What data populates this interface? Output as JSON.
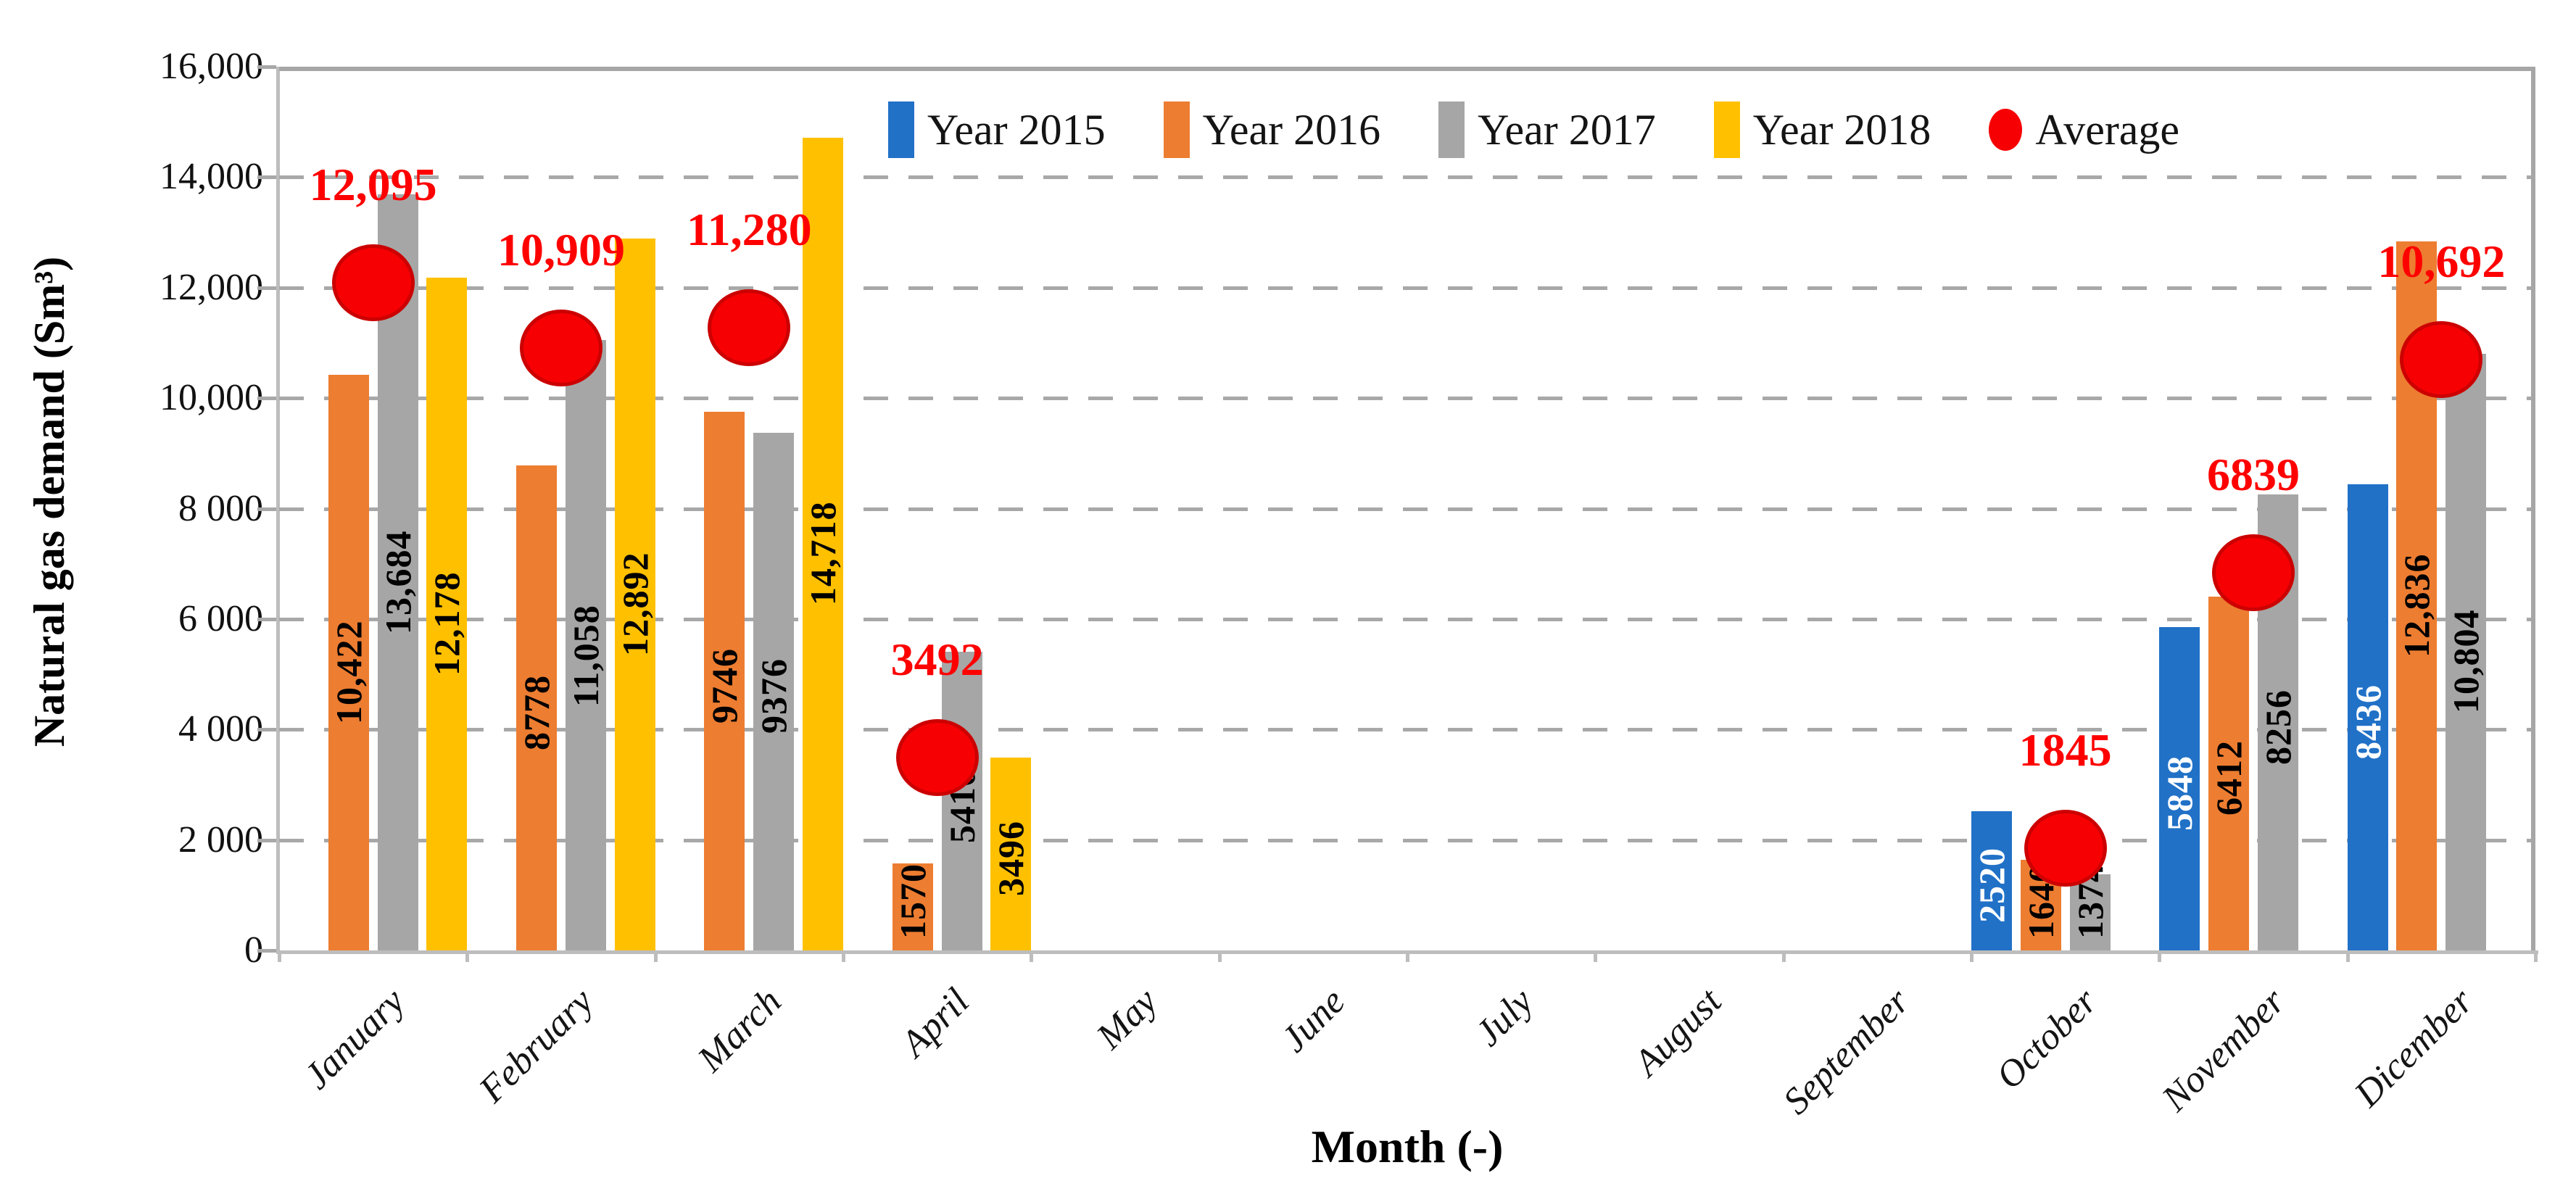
{
  "colors": {
    "grid": "#A8A8A8",
    "axis": "#BDBDBD",
    "average_label": "#FF0000",
    "average_fill": "#F60004",
    "average_border": "#CC0000"
  },
  "chart_data": {
    "type": "bar",
    "title": "",
    "xlabel": "Month (-)",
    "ylabel": "Natural gas demand (Sm³)",
    "ylim": [
      0,
      16000
    ],
    "ytick_interval": 2000,
    "ytick_labels": [
      "0",
      "2 000",
      "4 000",
      "6 000",
      "8 000",
      "10,000",
      "12,000",
      "14,000",
      "16,000"
    ],
    "grid": "horizontal dashed every 2000",
    "legend_position": "top",
    "categories": [
      "January",
      "February",
      "March",
      "April",
      "May",
      "June",
      "July",
      "August",
      "September",
      "October",
      "November",
      "Dicember"
    ],
    "series": [
      {
        "name": "Year 2015",
        "color": "#2171C7",
        "label_color": "#FFFFFF",
        "values": [
          null,
          null,
          null,
          null,
          null,
          null,
          null,
          null,
          null,
          2520,
          5848,
          8436
        ],
        "labels": [
          "",
          "",
          "",
          "",
          "",
          "",
          "",
          "",
          "",
          "2520",
          "5848",
          "8436"
        ]
      },
      {
        "name": "Year 2016",
        "color": "#ED7D31",
        "label_color": "#000000",
        "values": [
          10422,
          8778,
          9746,
          1570,
          null,
          null,
          null,
          null,
          null,
          1640,
          6412,
          12836
        ],
        "labels": [
          "10,422",
          "8778",
          "9746",
          "1570",
          "",
          "",
          "",
          "",
          "",
          "1640",
          "6412",
          "12,836"
        ]
      },
      {
        "name": "Year 2017",
        "color": "#A6A6A6",
        "label_color": "#000000",
        "values": [
          13684,
          11058,
          9376,
          5410,
          null,
          null,
          null,
          null,
          null,
          1374,
          8256,
          10804
        ],
        "labels": [
          "13,684",
          "11,058",
          "9376",
          "5410",
          "",
          "",
          "",
          "",
          "",
          "1374",
          "8256",
          "10,804"
        ]
      },
      {
        "name": "Year 2018",
        "color": "#FFC000",
        "label_color": "#000000",
        "values": [
          12178,
          12892,
          14718,
          3496,
          null,
          null,
          null,
          null,
          null,
          null,
          null,
          null
        ],
        "labels": [
          "12,178",
          "12,892",
          "14,718",
          "3496",
          "",
          "",
          "",
          "",
          "",
          "",
          "",
          ""
        ]
      }
    ],
    "average_series": {
      "name": "Average",
      "color": "#F60004",
      "values": [
        12095,
        10909,
        11280,
        3492,
        null,
        null,
        null,
        null,
        null,
        1845,
        6839,
        10692
      ],
      "labels": [
        "12,095",
        "10,909",
        "11,280",
        "3492",
        "",
        "",
        "",
        "",
        "",
        "1845",
        "6839",
        "10,692"
      ]
    },
    "legend": [
      {
        "label": "Year 2015",
        "marker": "rect",
        "color": "#2171C7"
      },
      {
        "label": "Year 2016",
        "marker": "rect",
        "color": "#ED7D31"
      },
      {
        "label": "Year 2017",
        "marker": "rect",
        "color": "#A6A6A6"
      },
      {
        "label": "Year 2018",
        "marker": "rect",
        "color": "#FFC000"
      },
      {
        "label": "Average",
        "marker": "circle",
        "color": "#F60004"
      }
    ]
  }
}
